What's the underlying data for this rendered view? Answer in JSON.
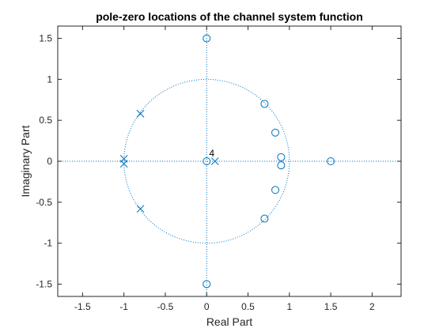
{
  "chart_data": {
    "type": "scatter",
    "title": "pole-zero locations of the channel system function",
    "xlabel": "Real Part",
    "ylabel": "Imaginary Part",
    "xlim": [
      -1.8,
      2.35
    ],
    "ylim": [
      -1.65,
      1.65
    ],
    "xticks": [
      -1.5,
      -1,
      -0.5,
      0,
      0.5,
      1,
      1.5,
      2
    ],
    "xtick_labels": [
      "-1.5",
      "-1",
      "-0.5",
      "0",
      "0.5",
      "1",
      "1.5",
      "2"
    ],
    "yticks": [
      -1.5,
      -1,
      -0.5,
      0,
      0.5,
      1,
      1.5
    ],
    "ytick_labels": [
      "-1.5",
      "-1",
      "-0.5",
      "0",
      "0.5",
      "1",
      "1.5"
    ],
    "unit_circle": true,
    "grid": false,
    "series_color": "#0072BD",
    "series": [
      {
        "marker": "o",
        "x": [
          0,
          0,
          0.7,
          0.83,
          0.9,
          0.9,
          0.83,
          0.7,
          1.5,
          0
        ],
        "y": [
          1.5,
          -1.5,
          0.7,
          0.35,
          0.05,
          -0.05,
          -0.35,
          -0.7,
          0,
          0
        ]
      },
      {
        "marker": "x",
        "x": [
          -0.8,
          -0.8,
          -1.0,
          -1.0,
          0.1
        ],
        "y": [
          0.58,
          -0.58,
          0.03,
          -0.03,
          0
        ]
      }
    ],
    "annotations": [
      {
        "text": "4",
        "x": 0.03,
        "y": 0.06
      }
    ]
  }
}
